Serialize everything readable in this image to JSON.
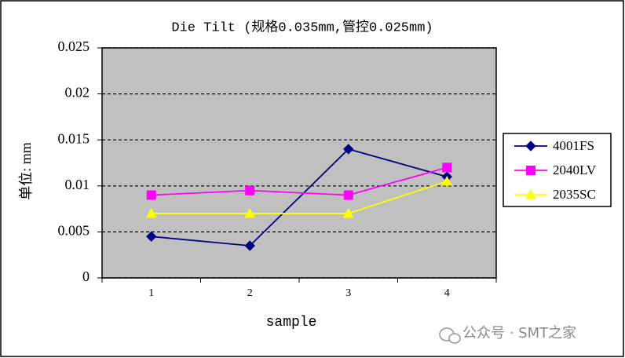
{
  "chart_data": {
    "type": "line",
    "title": "Die Tilt (规格0.035mm,管控0.025mm)",
    "x_label": "sample",
    "y_label": "单位: mm",
    "categories": [
      "1",
      "2",
      "3",
      "4"
    ],
    "series": [
      {
        "name": "4001FS",
        "color": "#000080",
        "marker": "diamond",
        "values": [
          0.0045,
          0.0035,
          0.014,
          0.011
        ]
      },
      {
        "name": "2040LV",
        "color": "#ff00ff",
        "marker": "square",
        "values": [
          0.009,
          0.0095,
          0.009,
          0.012
        ]
      },
      {
        "name": "2035SC",
        "color": "#ffff00",
        "marker": "triangle",
        "values": [
          0.007,
          0.007,
          0.007,
          0.0105
        ]
      }
    ],
    "ylim": [
      0,
      0.025
    ],
    "yticks": [
      0,
      0.005,
      0.01,
      0.015,
      0.02,
      0.025
    ],
    "grid": true,
    "legend": "right",
    "plot_background": "#c0c0c0",
    "watermark": "公众号 · SMT之家"
  }
}
